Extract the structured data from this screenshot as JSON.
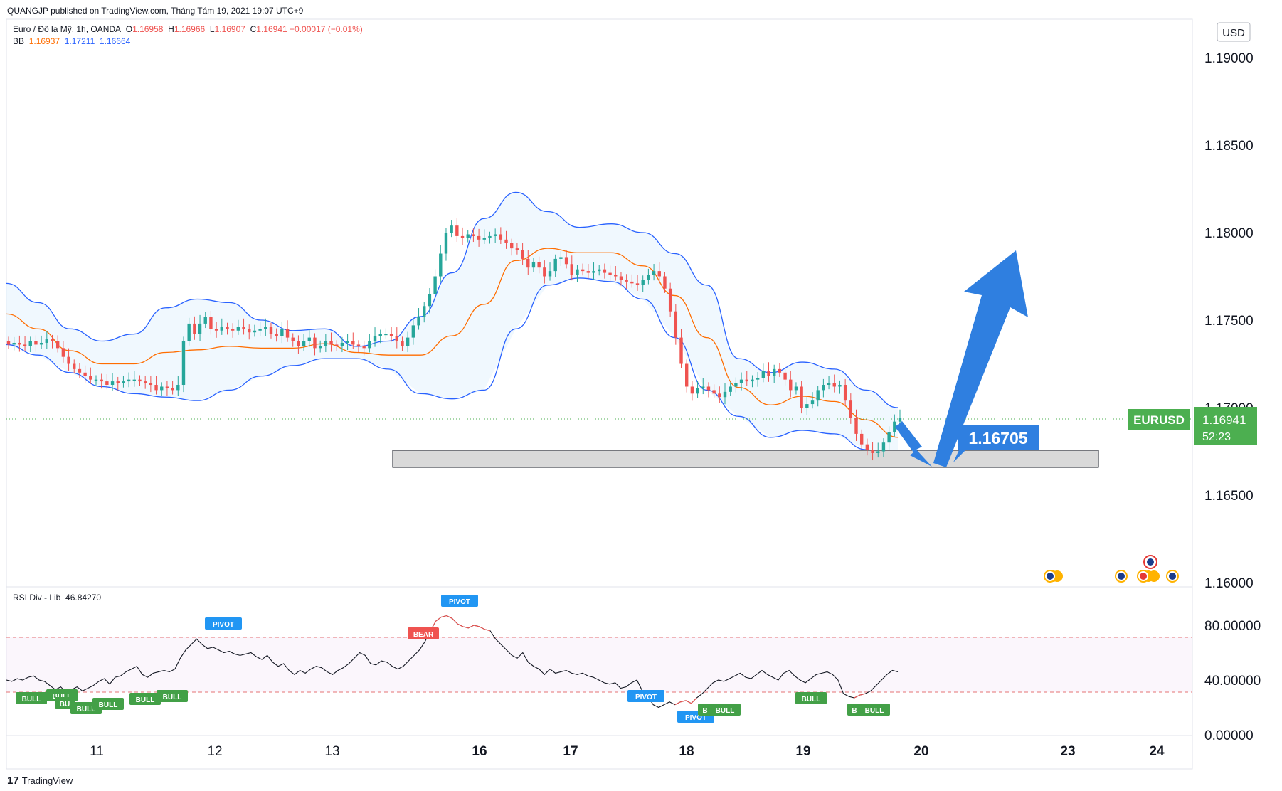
{
  "publisher": "QUANGJP published on TradingView.com, Tháng Tám 19, 2021 19:07 UTC+9",
  "legend": {
    "symbol": "Euro / Đô la Mỹ, 1h, OANDA",
    "o_label": "O",
    "o": "1.16958",
    "h_label": "H",
    "h": "1.16966",
    "l_label": "L",
    "l": "1.16907",
    "c_label": "C",
    "c": "1.16941",
    "change": "−0.00017 (−0.01%)",
    "bb_label": "BB",
    "bb_mid": "1.16937",
    "bb_up": "1.17211",
    "bb_low": "1.16664"
  },
  "currency_button": "USD",
  "price_axis": {
    "ticks": [
      "1.19000",
      "1.18500",
      "1.18000",
      "1.17500",
      "1.17000",
      "1.16500",
      "1.16000"
    ],
    "tick_values": [
      1.19,
      1.185,
      1.18,
      1.175,
      1.17,
      1.165,
      1.16
    ]
  },
  "last_price_tag": {
    "symbol": "EURUSD",
    "price": "1.16941",
    "countdown": "52:23"
  },
  "target_label": "1.16705",
  "rsi_panel": {
    "title": "RSI Div - Lib",
    "value": "46.84270",
    "ticks": [
      "80.00000",
      "40.00000",
      "0.00000"
    ],
    "tick_values": [
      80,
      40,
      0
    ],
    "upper_band": 70,
    "lower_band": 30,
    "labels": {
      "bull": "BULL",
      "bear": "BEAR",
      "pivot": "PIVOT",
      "b": "B",
      "bu": "BU"
    }
  },
  "time_axis": {
    "labels": [
      "11",
      "12",
      "13",
      "16",
      "17",
      "18",
      "19",
      "20",
      "23",
      "24"
    ],
    "bold": [
      "16",
      "17",
      "18",
      "19",
      "20",
      "23",
      "24"
    ]
  },
  "footer": "TradingView",
  "colors": {
    "up": "#26a69a",
    "down": "#ef5350",
    "bb_band": "#2962ff",
    "bb_basis": "#ff6d00",
    "bb_fill": "#e3f2fd",
    "price_tag": "#4caf50",
    "arrow": "#2f7fe0",
    "rsi_line": "#131722",
    "bull": "#43a047",
    "bear": "#ef5350",
    "pivot": "#2196f3"
  },
  "chart_data": {
    "type": "candlestick",
    "title": "Euro / Đô la Mỹ, 1h, OANDA",
    "ylim": [
      1.16,
      1.1925
    ],
    "support_zone": [
      1.1666,
      1.1676
    ],
    "ohlc_close_approx": [
      1.1736,
      1.1737,
      1.1736,
      1.1735,
      1.1738,
      1.1736,
      1.1737,
      1.1739,
      1.1738,
      1.1734,
      1.1729,
      1.1725,
      1.1722,
      1.172,
      1.1718,
      1.1716,
      1.1716,
      1.1715,
      1.1713,
      1.1715,
      1.1714,
      1.1715,
      1.1716,
      1.1716,
      1.1715,
      1.1714,
      1.1713,
      1.171,
      1.1712,
      1.1711,
      1.171,
      1.1713,
      1.1738,
      1.1748,
      1.1742,
      1.1748,
      1.1752,
      1.1745,
      1.1744,
      1.1746,
      1.1745,
      1.1744,
      1.1746,
      1.1745,
      1.1743,
      1.1744,
      1.1745,
      1.1746,
      1.1742,
      1.1741,
      1.1745,
      1.174,
      1.1738,
      1.1735,
      1.1738,
      1.174,
      1.1734,
      1.1735,
      1.1738,
      1.1736,
      1.1735,
      1.1737,
      1.1738,
      1.1736,
      1.1735,
      1.1734,
      1.1738,
      1.1741,
      1.1742,
      1.1742,
      1.1741,
      1.1738,
      1.1735,
      1.174,
      1.1747,
      1.1752,
      1.1758,
      1.1765,
      1.1775,
      1.1788,
      1.18,
      1.1804,
      1.1798,
      1.1797,
      1.1799,
      1.1798,
      1.1796,
      1.1797,
      1.1798,
      1.1799,
      1.1796,
      1.1794,
      1.1791,
      1.179,
      1.1785,
      1.178,
      1.1783,
      1.178,
      1.1775,
      1.1778,
      1.1785,
      1.1786,
      1.1782,
      1.1776,
      1.1779,
      1.1778,
      1.1777,
      1.1778,
      1.1779,
      1.1777,
      1.1776,
      1.1775,
      1.1773,
      1.1772,
      1.1771,
      1.177,
      1.1773,
      1.1776,
      1.1778,
      1.1775,
      1.1768,
      1.1755,
      1.174,
      1.1725,
      1.1712,
      1.1708,
      1.1711,
      1.1712,
      1.171,
      1.1708,
      1.1706,
      1.1709,
      1.1712,
      1.1714,
      1.1716,
      1.1715,
      1.1716,
      1.1717,
      1.1721,
      1.1718,
      1.1722,
      1.172,
      1.1716,
      1.171,
      1.1712,
      1.17,
      1.1702,
      1.1704,
      1.171,
      1.1713,
      1.1714,
      1.1712,
      1.1713,
      1.1704,
      1.1694,
      1.1685,
      1.1679,
      1.1676,
      1.1674,
      1.1675,
      1.168,
      1.1686,
      1.1692,
      1.1694
    ],
    "rsi_approx": [
      40,
      39,
      41,
      40,
      42,
      43,
      40,
      39,
      36,
      33,
      35,
      31,
      33,
      35,
      32,
      34,
      36,
      39,
      41,
      37,
      42,
      43,
      46,
      48,
      50,
      44,
      42,
      45,
      46,
      47,
      46,
      48,
      56,
      62,
      66,
      70,
      66,
      63,
      64,
      62,
      60,
      61,
      59,
      58,
      59,
      60,
      57,
      55,
      58,
      53,
      50,
      52,
      47,
      44,
      47,
      45,
      48,
      50,
      49,
      46,
      44,
      47,
      49,
      52,
      56,
      60,
      58,
      52,
      51,
      54,
      53,
      50,
      48,
      50,
      54,
      58,
      62,
      68,
      76,
      83,
      86,
      87,
      85,
      81,
      79,
      78,
      80,
      79,
      77,
      76,
      70,
      66,
      62,
      58,
      56,
      60,
      53,
      50,
      48,
      44,
      48,
      45,
      46,
      47,
      45,
      44,
      45,
      43,
      42,
      40,
      38,
      37,
      38,
      34,
      35,
      38,
      40,
      32,
      28,
      22,
      20,
      22,
      24,
      22,
      24,
      25,
      23,
      27,
      30,
      34,
      38,
      40,
      39,
      41,
      43,
      45,
      42,
      41,
      44,
      47,
      44,
      42,
      40,
      45,
      47,
      43,
      40,
      38,
      41,
      44,
      45,
      46,
      44,
      40,
      30,
      28,
      27,
      29,
      30,
      32,
      36,
      40,
      44,
      47,
      46
    ],
    "bb_upper_approx": [
      1.1771,
      1.176,
      1.1745,
      1.1738,
      1.1742,
      1.1757,
      1.1762,
      1.176,
      1.175,
      1.1744,
      1.1745,
      1.1735,
      1.1738,
      1.1752,
      1.1777,
      1.1808,
      1.1823,
      1.1812,
      1.1803,
      1.1805,
      1.18,
      1.1788,
      1.177,
      1.1728,
      1.172,
      1.1726,
      1.1722,
      1.171,
      1.17
    ],
    "bb_lower_approx": [
      1.1736,
      1.173,
      1.172,
      1.1712,
      1.1708,
      1.1706,
      1.1704,
      1.171,
      1.1718,
      1.1724,
      1.1728,
      1.1728,
      1.1722,
      1.1708,
      1.1705,
      1.171,
      1.1745,
      1.177,
      1.1774,
      1.1772,
      1.1762,
      1.174,
      1.171,
      1.1695,
      1.1683,
      1.1687,
      1.1685,
      1.1676,
      1.1666
    ]
  }
}
